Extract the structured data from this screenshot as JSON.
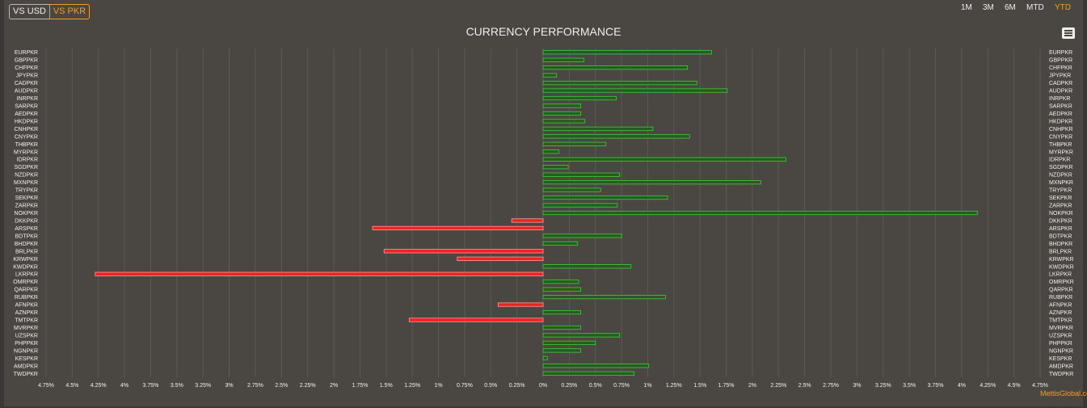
{
  "toggles": {
    "usd": "VS USD",
    "pkr": "VS PKR"
  },
  "ranges": [
    "1M",
    "3M",
    "6M",
    "MTD",
    "YTD"
  ],
  "active_range": "YTD",
  "credit": "MettisGlobal.com",
  "colors": {
    "positive": "#3dcc3d",
    "negative": "#ee2222",
    "accent": "#f49b2b",
    "background": "#4a4642",
    "grid": "#5e5955"
  },
  "chart_data": {
    "type": "bar",
    "orientation": "horizontal",
    "title": "CURRENCY PERFORMANCE",
    "categories": [
      "EURPKR",
      "GBPPKR",
      "CHFPKR",
      "JPYPKR",
      "CADPKR",
      "AUDPKR",
      "INRPKR",
      "SARPKR",
      "AEDPKR",
      "HKDPKR",
      "CNHPKR",
      "CNYPKR",
      "THBPKR",
      "MYRPKR",
      "IDRPKR",
      "SGDPKR",
      "NZDPKR",
      "MXNPKR",
      "TRYPKR",
      "SEKPKR",
      "ZARPKR",
      "NOKPKR",
      "DKKPKR",
      "ARSPKR",
      "BDTPKR",
      "BHDPKR",
      "BRLPKR",
      "KRWPKR",
      "KWDPKR",
      "LKRPKR",
      "OMRPKR",
      "QARPKR",
      "RUBPKR",
      "AFNPKR",
      "AZNPKR",
      "TMTPKR",
      "MVRPKR",
      "UZSPKR",
      "PHPPKR",
      "NGNPKR",
      "KESPKR",
      "AMDPKR",
      "TWDPKR"
    ],
    "values": [
      1.61,
      0.39,
      1.38,
      0.13,
      1.47,
      1.76,
      0.7,
      0.36,
      0.36,
      0.4,
      1.05,
      1.4,
      0.6,
      0.15,
      2.32,
      0.24,
      0.73,
      2.08,
      0.55,
      1.19,
      0.71,
      4.15,
      -0.3,
      -1.63,
      0.75,
      0.33,
      -1.52,
      -0.82,
      0.84,
      -4.28,
      0.34,
      0.36,
      1.17,
      -0.43,
      0.36,
      -1.28,
      0.36,
      0.73,
      0.5,
      0.36,
      0.04,
      1.01,
      0.87
    ],
    "xlim": [
      -4.75,
      4.75
    ],
    "ticks": [
      "4.75%",
      "4.5%",
      "4.25%",
      "4%",
      "3.75%",
      "3.5%",
      "3.25%",
      "3%",
      "2.75%",
      "2.5%",
      "2.25%",
      "2%",
      "1.75%",
      "1.5%",
      "1.25%",
      "1%",
      "0.75%",
      "0.5%",
      "0.25%",
      "0%",
      "0.25%",
      "0.5%",
      "0.75%",
      "1%",
      "1.25%",
      "1.5%",
      "1.75%",
      "2%",
      "2.25%",
      "2.5%",
      "2.75%",
      "3%",
      "3.25%",
      "3.5%",
      "3.75%",
      "4%",
      "4.25%",
      "4.5%",
      "4.75%"
    ],
    "grid": true,
    "labels_both_sides": true
  }
}
